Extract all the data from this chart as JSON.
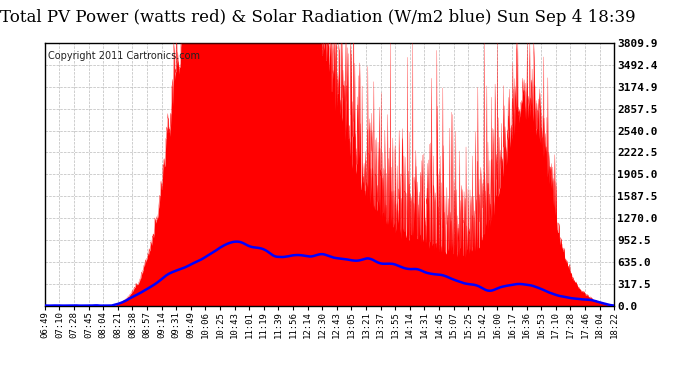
{
  "title": "Total PV Power (watts red) & Solar Radiation (W/m2 blue) Sun Sep 4 18:39",
  "copyright": "Copyright 2011 Cartronics.com",
  "bg_color": "#ffffff",
  "plot_bg_color": "#ffffff",
  "grid_color": "#bbbbbb",
  "y_max": 3809.9,
  "y_min": 0.0,
  "y_ticks": [
    0.0,
    317.5,
    635.0,
    952.5,
    1270.0,
    1587.5,
    1905.0,
    2222.5,
    2540.0,
    2857.5,
    3174.9,
    3492.4,
    3809.9
  ],
  "x_labels": [
    "06:49",
    "07:10",
    "07:28",
    "07:45",
    "08:04",
    "08:21",
    "08:38",
    "08:57",
    "09:14",
    "09:31",
    "09:49",
    "10:06",
    "10:25",
    "10:43",
    "11:01",
    "11:19",
    "11:39",
    "11:56",
    "12:14",
    "12:30",
    "12:43",
    "13:05",
    "13:21",
    "13:37",
    "13:55",
    "14:14",
    "14:31",
    "14:45",
    "15:07",
    "15:25",
    "15:42",
    "16:00",
    "16:17",
    "16:36",
    "16:53",
    "17:10",
    "17:28",
    "17:46",
    "18:04",
    "18:22"
  ],
  "title_fontsize": 12,
  "copyright_fontsize": 7,
  "tick_fontsize": 6.5,
  "y_tick_fontsize": 8,
  "line_color_red": "#ff0000",
  "line_color_blue": "#0000ff",
  "fill_color_red": "#ff0000",
  "border_color": "#000000"
}
